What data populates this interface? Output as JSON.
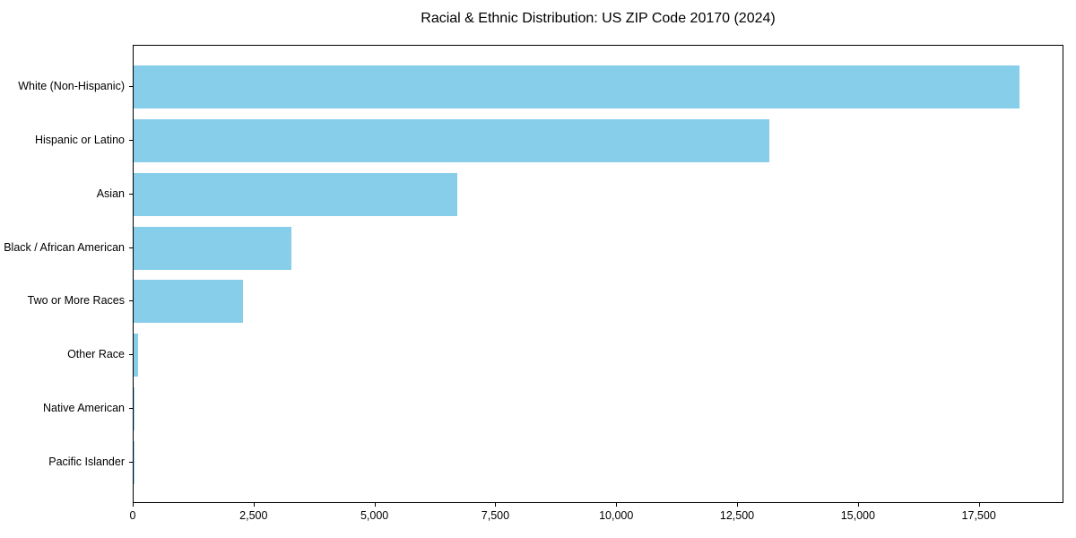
{
  "chart_data": {
    "type": "bar",
    "orientation": "horizontal",
    "title": "Racial & Ethnic Distribution: US ZIP Code 20170 (2024)",
    "categories": [
      "White (Non-Hispanic)",
      "Hispanic or Latino",
      "Asian",
      "Black / African American",
      "Two or More Races",
      "Other Race",
      "Native American",
      "Pacific Islander"
    ],
    "values": [
      18330,
      13140,
      6690,
      3260,
      2260,
      90,
      20,
      6
    ],
    "xlabel": "",
    "ylabel": "",
    "xlim": [
      0,
      19250
    ],
    "xticks": {
      "values": [
        0,
        2500,
        5000,
        7500,
        10000,
        12500,
        15000,
        17500
      ],
      "labels": [
        "0",
        "2,500",
        "5,000",
        "7,500",
        "10,000",
        "12,500",
        "15,000",
        "17,500"
      ]
    },
    "bar_color": "#87CEEB",
    "axis_color": "#000000",
    "grid": false
  }
}
